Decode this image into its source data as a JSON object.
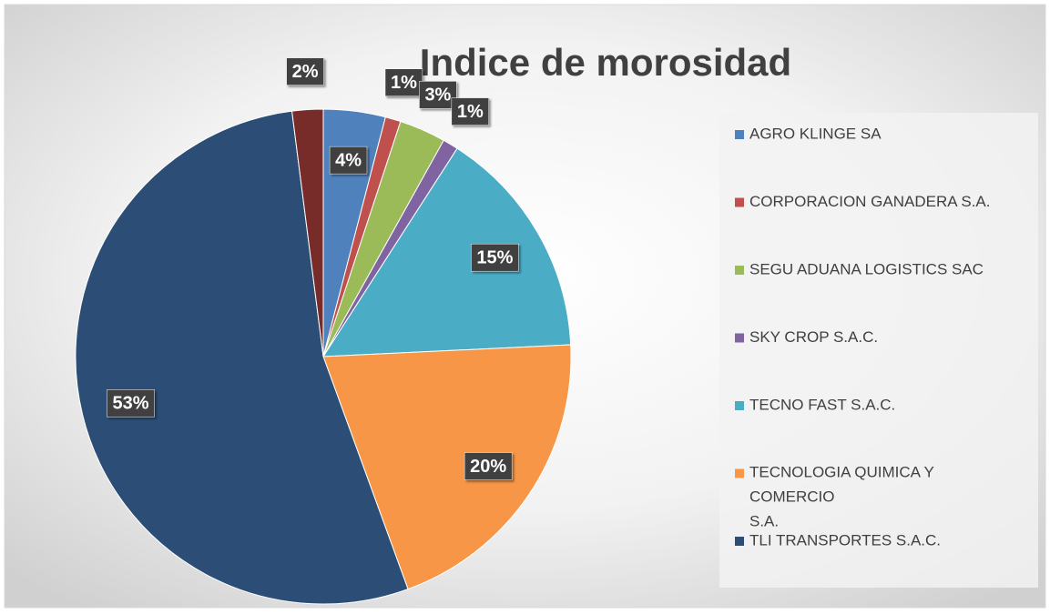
{
  "chart_data": {
    "type": "pie",
    "title": "Indice de morosidad",
    "categories": [
      "AGRO KLINGE SA",
      "CORPORACION GANADERA S.A.",
      "SEGU ADUANA LOGISTICS SAC",
      "SKY CROP S.A.C.",
      "TECNO FAST S.A.C.",
      "TECNOLOGIA QUIMICA Y COMERCIO S.A.",
      "TLI TRANSPORTES S.A.C.",
      null
    ],
    "values": [
      4,
      1,
      3,
      1,
      15,
      20,
      53,
      2
    ],
    "value_labels": [
      "4%",
      "1%",
      "3%",
      "1%",
      "15%",
      "20%",
      "53%",
      "2%"
    ],
    "colors": [
      "#4f81bd",
      "#c0504d",
      "#9bbb59",
      "#8064a2",
      "#4bacc6",
      "#f79646",
      "#2c4d75",
      "#772c2a"
    ],
    "legend": "right"
  }
}
